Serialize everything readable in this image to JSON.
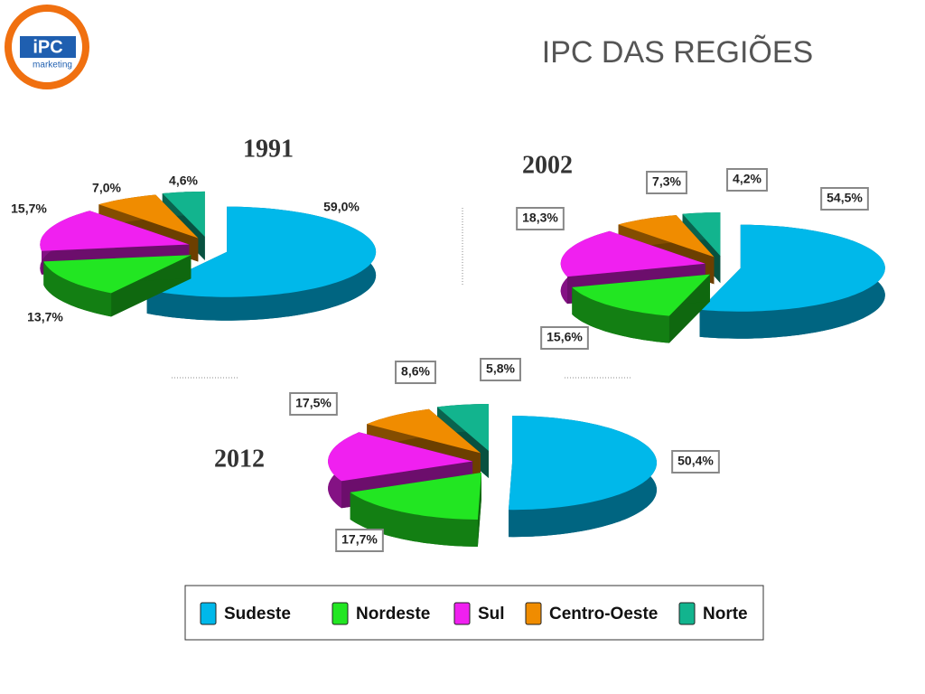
{
  "header": {
    "title": "IPC DAS REGIÕES",
    "logo_text": "iPC",
    "logo_subtext": "marketing"
  },
  "chart_data": [
    {
      "type": "pie",
      "title": "1991",
      "label_box": false,
      "categories": [
        "Sudeste",
        "Nordeste",
        "Sul",
        "Centro-Oeste",
        "Norte"
      ],
      "values": [
        59.0,
        13.7,
        15.7,
        7.0,
        4.6
      ],
      "value_labels": [
        "59,0%",
        "13,7%",
        "15,7%",
        "7,0%",
        "4,6%"
      ],
      "colors": [
        "#00b8ea",
        "#22e622",
        "#f020f0",
        "#f08c00",
        "#12b48e"
      ]
    },
    {
      "type": "pie",
      "title": "2002",
      "label_box": true,
      "categories": [
        "Sudeste",
        "Nordeste",
        "Sul",
        "Centro-Oeste",
        "Norte"
      ],
      "values": [
        54.5,
        15.6,
        18.3,
        7.3,
        4.2
      ],
      "value_labels": [
        "54,5%",
        "15,6%",
        "18,3%",
        "7,3%",
        "4,2%"
      ],
      "colors": [
        "#00b8ea",
        "#22e622",
        "#f020f0",
        "#f08c00",
        "#12b48e"
      ]
    },
    {
      "type": "pie",
      "title": "2012",
      "label_box": true,
      "categories": [
        "Sudeste",
        "Nordeste",
        "Sul",
        "Centro-Oeste",
        "Norte"
      ],
      "values": [
        50.4,
        17.7,
        17.5,
        8.6,
        5.8
      ],
      "value_labels": [
        "50,4%",
        "17,7%",
        "17,5%",
        "8,6%",
        "5,8%"
      ],
      "colors": [
        "#00b8ea",
        "#22e622",
        "#f020f0",
        "#f08c00",
        "#12b48e"
      ]
    }
  ]
}
